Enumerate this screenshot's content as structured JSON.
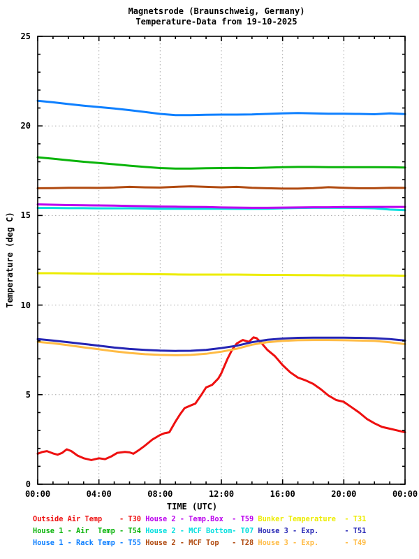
{
  "chart_data": {
    "type": "line",
    "title": "Magnetsrode (Braunschweig, Germany)",
    "subtitle": "Temperature-Data from 19-10-2025",
    "xlabel": "TIME (UTC)",
    "ylabel": "Temperature (deg C)",
    "xlim_hours": [
      0,
      24
    ],
    "ylim": [
      0,
      25
    ],
    "x_major_tick_hours": [
      0,
      4,
      8,
      12,
      16,
      20,
      24
    ],
    "x_tick_labels": [
      "00:00",
      "04:00",
      "08:00",
      "12:00",
      "16:00",
      "20:00",
      "00:00"
    ],
    "x_minor_step_hours": 1,
    "y_major_ticks": [
      0,
      5,
      10,
      15,
      20,
      25
    ],
    "y_tick_labels": [
      "0",
      "5",
      "10",
      "15",
      "20",
      "25"
    ],
    "y_minor_step": 1,
    "grid": "dotted gray at major ticks",
    "grid_color": "#a6a6a6",
    "series": [
      {
        "name": "Outside Air Temp",
        "tag": "T30",
        "color": "#ee1010",
        "points": [
          [
            0,
            1.7
          ],
          [
            0.3,
            1.8
          ],
          [
            0.6,
            1.85
          ],
          [
            1,
            1.72
          ],
          [
            1.3,
            1.65
          ],
          [
            1.6,
            1.75
          ],
          [
            1.9,
            1.95
          ],
          [
            2.2,
            1.85
          ],
          [
            2.6,
            1.6
          ],
          [
            3,
            1.45
          ],
          [
            3.5,
            1.35
          ],
          [
            4,
            1.45
          ],
          [
            4.4,
            1.4
          ],
          [
            4.8,
            1.55
          ],
          [
            5.2,
            1.75
          ],
          [
            5.7,
            1.8
          ],
          [
            6,
            1.78
          ],
          [
            6.25,
            1.7
          ],
          [
            6.6,
            1.9
          ],
          [
            7,
            2.15
          ],
          [
            7.5,
            2.5
          ],
          [
            8,
            2.75
          ],
          [
            8.3,
            2.85
          ],
          [
            8.6,
            2.9
          ],
          [
            9,
            3.5
          ],
          [
            9.3,
            3.9
          ],
          [
            9.6,
            4.25
          ],
          [
            10,
            4.4
          ],
          [
            10.3,
            4.5
          ],
          [
            10.7,
            5.0
          ],
          [
            11,
            5.4
          ],
          [
            11.4,
            5.55
          ],
          [
            11.8,
            5.9
          ],
          [
            12,
            6.2
          ],
          [
            12.4,
            7.0
          ],
          [
            12.7,
            7.5
          ],
          [
            13,
            7.85
          ],
          [
            13.4,
            8.05
          ],
          [
            13.6,
            8.0
          ],
          [
            13.8,
            7.95
          ],
          [
            14.1,
            8.2
          ],
          [
            14.3,
            8.15
          ],
          [
            14.6,
            7.9
          ],
          [
            15,
            7.5
          ],
          [
            15.5,
            7.15
          ],
          [
            16,
            6.65
          ],
          [
            16.5,
            6.25
          ],
          [
            17,
            5.95
          ],
          [
            17.5,
            5.8
          ],
          [
            18,
            5.6
          ],
          [
            18.5,
            5.3
          ],
          [
            19,
            4.95
          ],
          [
            19.5,
            4.7
          ],
          [
            20,
            4.6
          ],
          [
            20.5,
            4.3
          ],
          [
            21,
            4.0
          ],
          [
            21.5,
            3.65
          ],
          [
            22,
            3.4
          ],
          [
            22.5,
            3.2
          ],
          [
            23,
            3.1
          ],
          [
            23.5,
            3.0
          ],
          [
            24,
            2.9
          ]
        ]
      },
      {
        "name": "House 1 - Rack Temp",
        "tag": "T55",
        "color": "#0f80ff",
        "x_start": 0,
        "x_step": 1,
        "values": [
          21.4,
          21.32,
          21.22,
          21.13,
          21.05,
          20.97,
          20.88,
          20.78,
          20.67,
          20.6,
          20.6,
          20.62,
          20.63,
          20.63,
          20.64,
          20.67,
          20.7,
          20.72,
          20.7,
          20.68,
          20.68,
          20.67,
          20.65,
          20.7,
          20.66
        ]
      },
      {
        "name": "House 1 - Air  Temp",
        "tag": "T54",
        "color": "#0ab40a",
        "x_start": 0,
        "x_step": 1,
        "values": [
          18.25,
          18.17,
          18.08,
          18.0,
          17.93,
          17.86,
          17.78,
          17.71,
          17.65,
          17.62,
          17.62,
          17.64,
          17.65,
          17.66,
          17.65,
          17.67,
          17.7,
          17.71,
          17.71,
          17.7,
          17.7,
          17.7,
          17.7,
          17.69,
          17.68
        ]
      },
      {
        "name": "House 2 - MCF Top",
        "tag": "T28",
        "color": "#b04a10",
        "x_start": 0,
        "x_step": 1,
        "values": [
          16.52,
          16.53,
          16.55,
          16.55,
          16.54,
          16.56,
          16.6,
          16.57,
          16.56,
          16.6,
          16.63,
          16.6,
          16.57,
          16.6,
          16.55,
          16.52,
          16.5,
          16.5,
          16.53,
          16.58,
          16.55,
          16.52,
          16.52,
          16.55,
          16.54
        ]
      },
      {
        "name": "House 2 - MCF Bottom",
        "tag": "T07",
        "color": "#00dede",
        "x_start": 0,
        "x_step": 1,
        "values": [
          15.42,
          15.42,
          15.41,
          15.41,
          15.4,
          15.4,
          15.4,
          15.39,
          15.38,
          15.38,
          15.38,
          15.38,
          15.38,
          15.37,
          15.37,
          15.38,
          15.4,
          15.42,
          15.43,
          15.43,
          15.43,
          15.42,
          15.4,
          15.33,
          15.3
        ]
      },
      {
        "name": "House 2 - Temp.Box",
        "tag": "T59",
        "color": "#bb00ee",
        "x_start": 0,
        "x_step": 1,
        "values": [
          15.62,
          15.6,
          15.58,
          15.57,
          15.56,
          15.55,
          15.53,
          15.52,
          15.5,
          15.49,
          15.48,
          15.47,
          15.45,
          15.44,
          15.43,
          15.43,
          15.44,
          15.45,
          15.46,
          15.46,
          15.47,
          15.47,
          15.48,
          15.48,
          15.48
        ]
      },
      {
        "name": "Bunker Temperature",
        "tag": "T31",
        "color": "#ecec00",
        "x_start": 0,
        "x_step": 1,
        "values": [
          11.78,
          11.78,
          11.77,
          11.76,
          11.75,
          11.74,
          11.74,
          11.73,
          11.72,
          11.71,
          11.7,
          11.7,
          11.7,
          11.7,
          11.69,
          11.68,
          11.68,
          11.67,
          11.67,
          11.66,
          11.66,
          11.65,
          11.65,
          11.65,
          11.64
        ]
      },
      {
        "name": "House 3 - Exp. (lower)",
        "tag": "T49",
        "color": "#ffbb44",
        "x_start": 0,
        "x_step": 1,
        "values": [
          7.95,
          7.87,
          7.76,
          7.64,
          7.53,
          7.42,
          7.33,
          7.26,
          7.22,
          7.2,
          7.22,
          7.28,
          7.4,
          7.56,
          7.79,
          7.93,
          8.0,
          8.04,
          8.05,
          8.05,
          8.04,
          8.02,
          8.0,
          7.93,
          7.82
        ]
      },
      {
        "name": "House 3 - Exp. (upper)",
        "tag": "T51",
        "color": "#2525b4",
        "x_start": 0,
        "x_step": 1,
        "values": [
          8.1,
          8.02,
          7.93,
          7.83,
          7.73,
          7.63,
          7.55,
          7.5,
          7.46,
          7.44,
          7.45,
          7.5,
          7.6,
          7.73,
          7.93,
          8.06,
          8.13,
          8.17,
          8.18,
          8.18,
          8.18,
          8.17,
          8.15,
          8.1,
          8.02
        ]
      }
    ],
    "legend": {
      "position": "below plot, 3 columns x 3 rows",
      "rows": [
        [
          {
            "text": "Outside Air Temp    - T30",
            "color": "#ee1010"
          },
          {
            "text": "House 2 - Temp.Box  - T59",
            "color": "#bb00ee"
          },
          {
            "text": "Bunker Temperature  - T31",
            "color": "#ecec00"
          }
        ],
        [
          {
            "text": "House 1 - Air  Temp - T54",
            "color": "#0ab40a"
          },
          {
            "text": "House 2 - MCF Bottom- T07",
            "color": "#00dede"
          },
          {
            "text": "House 3 - Exp.      - T51",
            "color": "#2525b4"
          }
        ],
        [
          {
            "text": "House 1 - Rack Temp - T55",
            "color": "#0f80ff"
          },
          {
            "text": "House 2 - MCF Top   - T28",
            "color": "#b04a10"
          },
          {
            "text": "House 3 - Exp.      - T49",
            "color": "#ffbb44"
          }
        ]
      ]
    }
  }
}
